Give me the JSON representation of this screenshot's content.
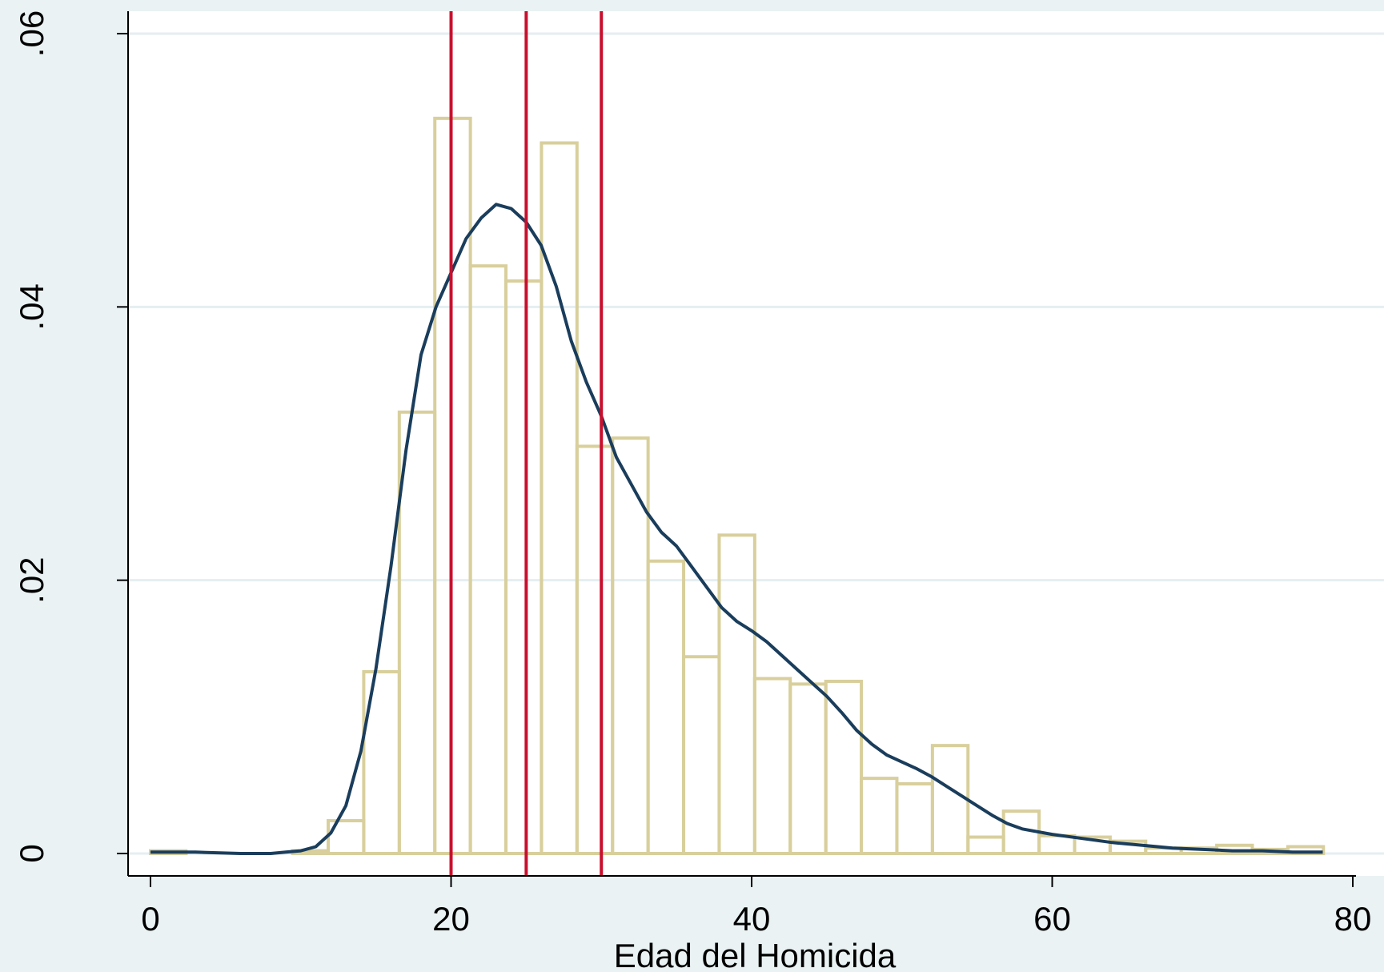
{
  "chart_data": {
    "type": "bar",
    "subtype": "histogram-with-density",
    "title": "",
    "xlabel": "Edad del Homicida",
    "ylabel": "",
    "xlim": [
      -3,
      82
    ],
    "ylim": [
      -0.0016,
      0.0612
    ],
    "x_ticks": [
      0,
      20,
      40,
      60,
      80
    ],
    "x_tick_labels": [
      "0",
      "20",
      "40",
      "60",
      "80"
    ],
    "y_ticks": [
      0,
      0.02,
      0.04,
      0.06
    ],
    "y_tick_labels": [
      "0",
      ".02",
      ".04",
      ".06"
    ],
    "grid": "horizontal",
    "legend": "none",
    "colors": {
      "background": "#eaf2f3",
      "plot_background": "#ffffff",
      "grid": "#e6eef0",
      "bar_outline": "#d8cf9c",
      "density_line": "#1a3d5c",
      "reference_lines": "#c8102e",
      "axis": "#000000"
    },
    "histogram": {
      "bin_width": 2.365,
      "bin_start": 0,
      "bins": [
        {
          "x0": 0.0,
          "x1": 2.365,
          "density": 0.0002
        },
        {
          "x0": 9.46,
          "x1": 11.825,
          "density": 0.0002
        },
        {
          "x0": 11.825,
          "x1": 14.19,
          "density": 0.0024
        },
        {
          "x0": 14.19,
          "x1": 16.555,
          "density": 0.0133
        },
        {
          "x0": 16.555,
          "x1": 18.92,
          "density": 0.0323
        },
        {
          "x0": 18.92,
          "x1": 21.285,
          "density": 0.0538
        },
        {
          "x0": 21.285,
          "x1": 23.65,
          "density": 0.043
        },
        {
          "x0": 23.65,
          "x1": 26.015,
          "density": 0.0419
        },
        {
          "x0": 26.015,
          "x1": 28.38,
          "density": 0.052
        },
        {
          "x0": 28.38,
          "x1": 30.745,
          "density": 0.0298
        },
        {
          "x0": 30.745,
          "x1": 33.11,
          "density": 0.0304
        },
        {
          "x0": 33.11,
          "x1": 35.475,
          "density": 0.0214
        },
        {
          "x0": 35.475,
          "x1": 37.84,
          "density": 0.0144
        },
        {
          "x0": 37.84,
          "x1": 40.205,
          "density": 0.0233
        },
        {
          "x0": 40.205,
          "x1": 42.57,
          "density": 0.0128
        },
        {
          "x0": 42.57,
          "x1": 44.935,
          "density": 0.0124
        },
        {
          "x0": 44.935,
          "x1": 47.3,
          "density": 0.0126
        },
        {
          "x0": 47.3,
          "x1": 49.665,
          "density": 0.0055
        },
        {
          "x0": 49.665,
          "x1": 52.03,
          "density": 0.0051
        },
        {
          "x0": 52.03,
          "x1": 54.395,
          "density": 0.0079
        },
        {
          "x0": 54.395,
          "x1": 56.76,
          "density": 0.0012
        },
        {
          "x0": 56.76,
          "x1": 59.125,
          "density": 0.0031
        },
        {
          "x0": 59.125,
          "x1": 61.49,
          "density": 0.0013
        },
        {
          "x0": 61.49,
          "x1": 63.855,
          "density": 0.0012
        },
        {
          "x0": 63.855,
          "x1": 66.22,
          "density": 0.0009
        },
        {
          "x0": 66.22,
          "x1": 68.585,
          "density": 0.0004
        },
        {
          "x0": 68.585,
          "x1": 70.95,
          "density": 0.0004
        },
        {
          "x0": 70.95,
          "x1": 73.315,
          "density": 0.0006
        },
        {
          "x0": 73.315,
          "x1": 75.68,
          "density": 0.0003
        },
        {
          "x0": 75.68,
          "x1": 78.045,
          "density": 0.0005
        }
      ]
    },
    "density_curve": {
      "x": [
        0,
        3,
        6,
        8,
        9,
        10,
        11,
        12,
        13,
        14,
        15,
        16,
        17,
        18,
        19,
        20,
        21,
        22,
        23,
        24,
        25,
        26,
        27,
        28,
        29,
        30,
        31,
        32,
        33,
        34,
        35,
        36,
        37,
        38,
        39,
        40,
        41,
        42,
        43,
        44,
        45,
        46,
        47,
        48,
        49,
        50,
        51,
        52,
        53,
        54,
        55,
        56,
        57,
        58,
        60,
        62,
        64,
        66,
        68,
        70,
        72,
        74,
        76,
        78
      ],
      "y": [
        0.0001,
        0.0001,
        0.0,
        0.0,
        0.0001,
        0.0002,
        0.0005,
        0.0015,
        0.0035,
        0.0075,
        0.0135,
        0.021,
        0.0295,
        0.0365,
        0.04,
        0.0425,
        0.045,
        0.0465,
        0.0475,
        0.0472,
        0.0462,
        0.0445,
        0.0415,
        0.0375,
        0.0345,
        0.032,
        0.029,
        0.027,
        0.025,
        0.0235,
        0.0225,
        0.021,
        0.0195,
        0.018,
        0.017,
        0.0163,
        0.0155,
        0.0145,
        0.0135,
        0.0125,
        0.0115,
        0.0103,
        0.009,
        0.008,
        0.0072,
        0.0067,
        0.0062,
        0.0056,
        0.0049,
        0.0042,
        0.0035,
        0.0028,
        0.0022,
        0.0018,
        0.0014,
        0.0011,
        0.0008,
        0.0006,
        0.0004,
        0.0003,
        0.0002,
        0.0002,
        0.0001,
        0.0001
      ]
    },
    "reference_lines_x": [
      20,
      25,
      30
    ]
  }
}
